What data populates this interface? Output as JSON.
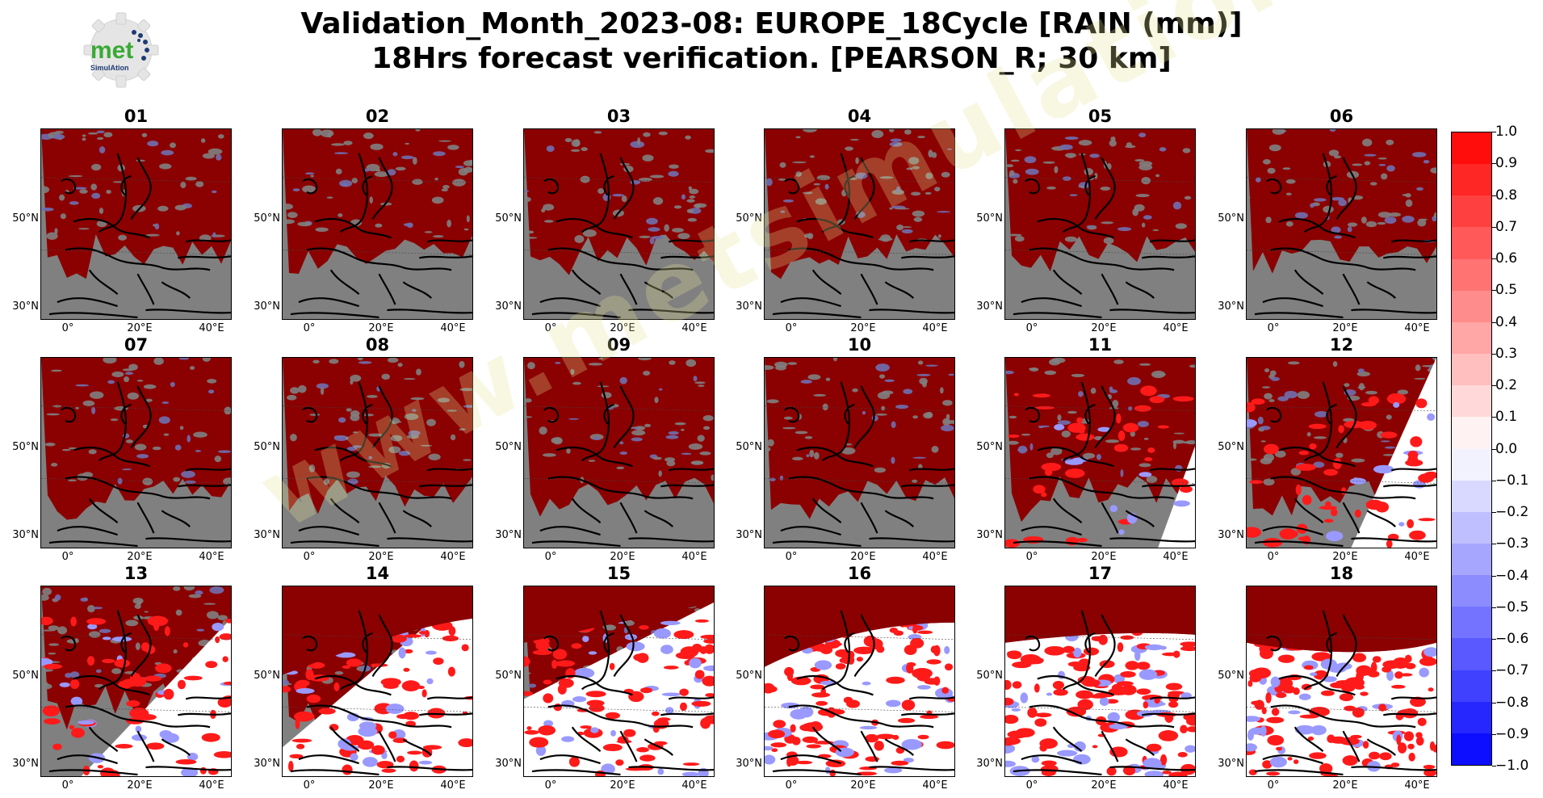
{
  "logo": {
    "word": "met",
    "sub": "SimulAtion"
  },
  "title": {
    "line1": "Validation_Month_2023-08: EUROPE_18Cycle [RAIN (mm)]",
    "line2": "18Hrs forecast verification.  [PEARSON_R; 30 km]"
  },
  "panels": [
    "01",
    "02",
    "03",
    "04",
    "05",
    "06",
    "07",
    "08",
    "09",
    "10",
    "11",
    "12",
    "13",
    "14",
    "15",
    "16",
    "17",
    "18"
  ],
  "axis": {
    "lat_labels": [
      "50°N",
      "30°N"
    ],
    "lon_labels": [
      "0°",
      "20°E",
      "40°E"
    ]
  },
  "colorbar": {
    "ticks": [
      "1.0",
      "0.9",
      "0.8",
      "0.7",
      "0.6",
      "0.5",
      "0.4",
      "0.3",
      "0.2",
      "0.1",
      "0.0",
      "−0.1",
      "−0.2",
      "−0.3",
      "−0.4",
      "−0.5",
      "−0.6",
      "−0.7",
      "−0.8",
      "−0.9",
      "−1.0"
    ],
    "max_color": "#ff0000",
    "min_color": "#0000ff",
    "mid_color": "#ffffff"
  },
  "watermark": "www.metsimulation.com",
  "colors": {
    "high_corr": "#8b0000",
    "no_data": "#808080",
    "positive": "#ff1a1a",
    "negative": "#9999ff"
  }
}
